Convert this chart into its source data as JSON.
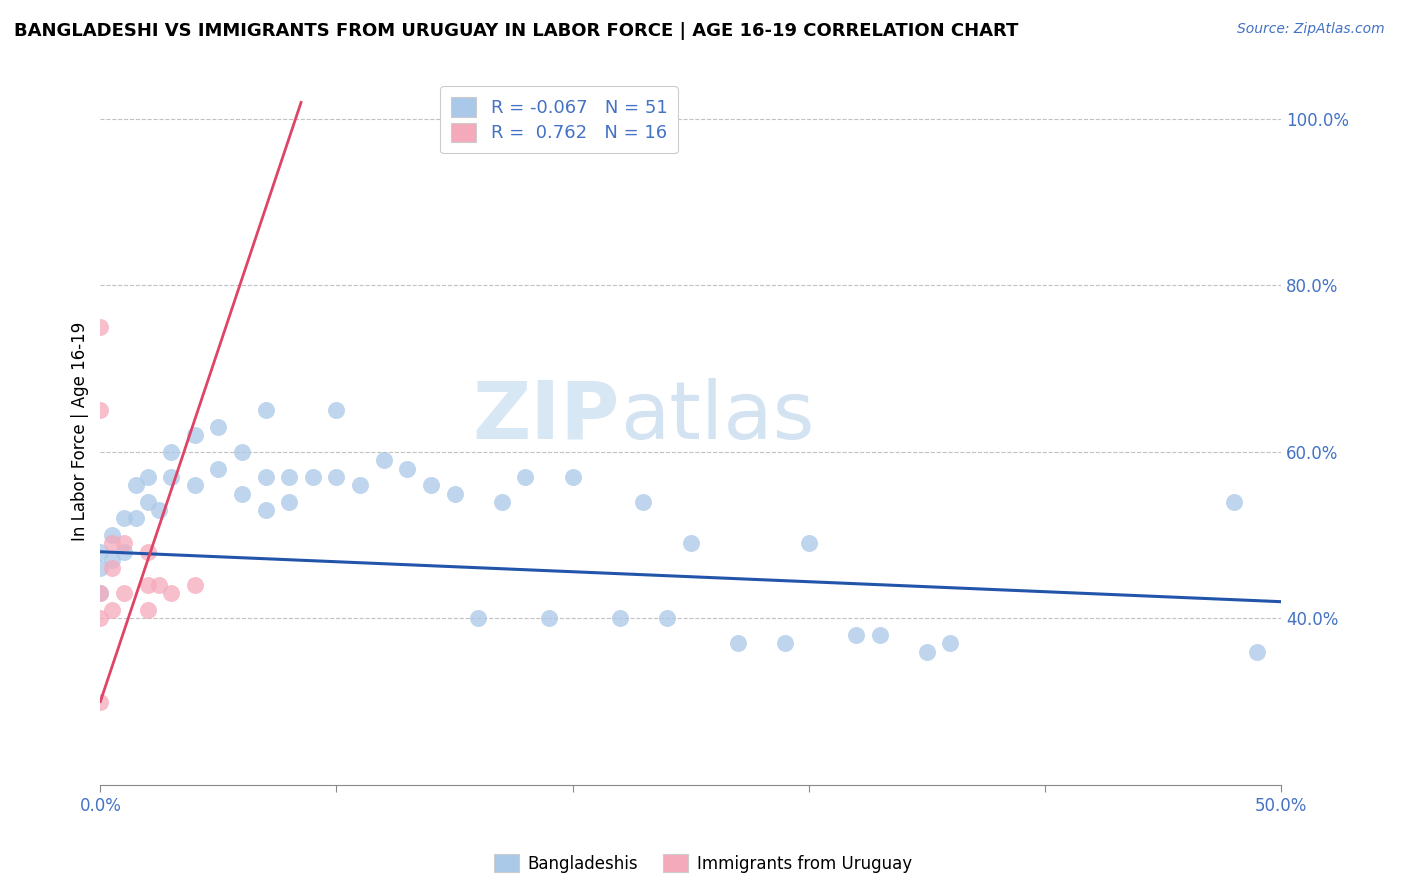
{
  "title": "BANGLADESHI VS IMMIGRANTS FROM URUGUAY IN LABOR FORCE | AGE 16-19 CORRELATION CHART",
  "source_text": "Source: ZipAtlas.com",
  "ylabel": "In Labor Force | Age 16-19",
  "xlim": [
    0.0,
    0.5
  ],
  "ylim": [
    0.2,
    1.05
  ],
  "xticks": [
    0.0,
    0.1,
    0.2,
    0.3,
    0.4,
    0.5
  ],
  "xticklabels": [
    "0.0%",
    "",
    "",
    "",
    "",
    "50.0%"
  ],
  "yticks": [
    0.4,
    0.6,
    0.8,
    1.0
  ],
  "yticklabels": [
    "40.0%",
    "60.0%",
    "80.0%",
    "100.0%"
  ],
  "blue_r": -0.067,
  "blue_n": 51,
  "pink_r": 0.762,
  "pink_n": 16,
  "blue_color": "#aac8e8",
  "pink_color": "#f5aabb",
  "blue_line_color": "#2255aa",
  "pink_line_color": "#dd4466",
  "watermark_zip": "ZIP",
  "watermark_atlas": "atlas",
  "blue_scatter_x": [
    0.0,
    0.0,
    0.0,
    0.005,
    0.005,
    0.01,
    0.01,
    0.015,
    0.015,
    0.02,
    0.02,
    0.025,
    0.03,
    0.03,
    0.04,
    0.04,
    0.05,
    0.05,
    0.06,
    0.06,
    0.07,
    0.07,
    0.07,
    0.08,
    0.08,
    0.09,
    0.1,
    0.1,
    0.11,
    0.12,
    0.13,
    0.14,
    0.15,
    0.16,
    0.17,
    0.18,
    0.19,
    0.2,
    0.22,
    0.23,
    0.24,
    0.25,
    0.27,
    0.29,
    0.3,
    0.32,
    0.33,
    0.35,
    0.36,
    0.48,
    0.49
  ],
  "blue_scatter_y": [
    0.48,
    0.46,
    0.43,
    0.5,
    0.47,
    0.52,
    0.48,
    0.56,
    0.52,
    0.57,
    0.54,
    0.53,
    0.6,
    0.57,
    0.62,
    0.56,
    0.63,
    0.58,
    0.6,
    0.55,
    0.65,
    0.57,
    0.53,
    0.57,
    0.54,
    0.57,
    0.65,
    0.57,
    0.56,
    0.59,
    0.58,
    0.56,
    0.55,
    0.4,
    0.54,
    0.57,
    0.4,
    0.57,
    0.4,
    0.54,
    0.4,
    0.49,
    0.37,
    0.37,
    0.49,
    0.38,
    0.38,
    0.36,
    0.37,
    0.54,
    0.36
  ],
  "pink_scatter_x": [
    0.0,
    0.0,
    0.0,
    0.0,
    0.0,
    0.005,
    0.005,
    0.005,
    0.01,
    0.01,
    0.02,
    0.02,
    0.02,
    0.025,
    0.03,
    0.04
  ],
  "pink_scatter_y": [
    0.75,
    0.65,
    0.43,
    0.4,
    0.3,
    0.49,
    0.46,
    0.41,
    0.49,
    0.43,
    0.48,
    0.44,
    0.41,
    0.44,
    0.43,
    0.44
  ],
  "pink_line_x0": 0.0,
  "pink_line_y0": 0.3,
  "pink_line_x1": 0.085,
  "pink_line_y1": 1.02,
  "blue_line_x0": 0.0,
  "blue_line_y0": 0.48,
  "blue_line_x1": 0.5,
  "blue_line_y1": 0.42
}
